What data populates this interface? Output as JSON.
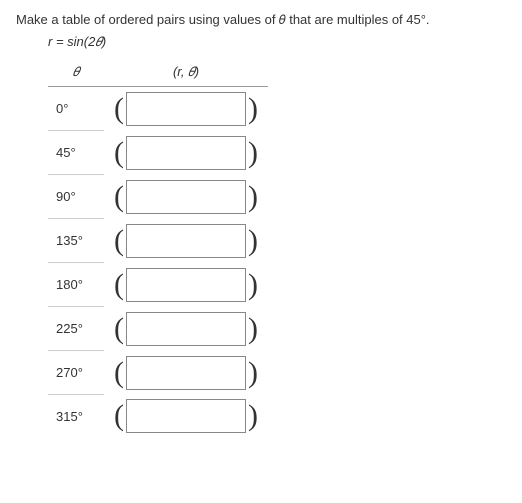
{
  "prompt": "Make a table of ordered pairs using values of 𝜃 that are multiples of 45°.",
  "equation": "r = sin(2𝜃)",
  "headers": {
    "theta": "𝜃",
    "pair": "(r, 𝜃)"
  },
  "rows": [
    {
      "theta": "0°",
      "value": ""
    },
    {
      "theta": "45°",
      "value": ""
    },
    {
      "theta": "90°",
      "value": ""
    },
    {
      "theta": "135°",
      "value": ""
    },
    {
      "theta": "180°",
      "value": ""
    },
    {
      "theta": "225°",
      "value": ""
    },
    {
      "theta": "270°",
      "value": ""
    },
    {
      "theta": "315°",
      "value": ""
    }
  ],
  "paren_open": "(",
  "paren_close": ")"
}
